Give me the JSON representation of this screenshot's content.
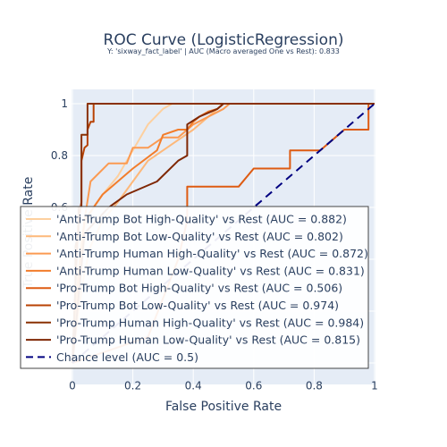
{
  "chart_data": {
    "type": "line",
    "title": "ROC Curve (LogisticRegression)",
    "subtitle": "Y: 'sixway_fact_label' | AUC (Macro averaged One vs Rest): 0.833",
    "xlabel": "False Positive Rate",
    "ylabel": "True Positive Rate",
    "xlim": [
      -0.2,
      1.0
    ],
    "ylim": [
      -0.05,
      1.05
    ],
    "x_ticks": [
      "0",
      "0.2",
      "0.4",
      "0.6",
      "0.8",
      "1"
    ],
    "y_ticks": [
      "0.6",
      "0.8",
      "1"
    ],
    "legend_position": "lower-left",
    "series": [
      {
        "name": "'Anti-Trump Bot High-Quality' vs Rest (AUC = 0.882)",
        "color": "#fdd09f",
        "dash": "solid",
        "x": [
          0,
          0.02,
          0.03,
          0.05,
          0.07,
          0.1,
          0.15,
          0.2,
          0.25,
          0.3,
          0.33
        ],
        "y": [
          0,
          0.3,
          0.5,
          0.55,
          0.6,
          0.65,
          0.72,
          0.82,
          0.92,
          0.98,
          1.0
        ]
      },
      {
        "name": "'Anti-Trump Bot Low-Quality' vs Rest (AUC = 0.802)",
        "color": "#fdb87a",
        "dash": "solid",
        "x": [
          0,
          0.02,
          0.04,
          0.06,
          0.1,
          0.15,
          0.2,
          0.25,
          0.3,
          0.35,
          0.4,
          0.45,
          0.5
        ],
        "y": [
          0,
          0.2,
          0.35,
          0.45,
          0.55,
          0.62,
          0.7,
          0.78,
          0.82,
          0.86,
          0.9,
          0.95,
          1.0
        ]
      },
      {
        "name": "'Anti-Trump Human High-Quality' vs Rest (AUC = 0.872)",
        "color": "#fb9a52",
        "dash": "solid",
        "x": [
          0,
          0.02,
          0.04,
          0.06,
          0.12,
          0.18,
          0.2,
          0.25,
          0.3,
          0.35,
          0.4,
          0.45,
          0.5,
          0.52
        ],
        "y": [
          0,
          0.3,
          0.55,
          0.7,
          0.77,
          0.77,
          0.83,
          0.83,
          0.87,
          0.87,
          0.92,
          0.95,
          0.98,
          1.0
        ]
      },
      {
        "name": "'Anti-Trump Human Low-Quality' vs Rest (AUC = 0.831)",
        "color": "#f27d2c",
        "dash": "solid",
        "x": [
          0,
          0.02,
          0.04,
          0.1,
          0.15,
          0.2,
          0.28,
          0.3,
          0.35,
          0.38,
          0.4,
          0.42,
          0.45,
          0.48,
          0.5
        ],
        "y": [
          0,
          0.35,
          0.55,
          0.65,
          0.7,
          0.75,
          0.82,
          0.88,
          0.9,
          0.9,
          0.93,
          0.95,
          0.97,
          0.98,
          1.0
        ]
      },
      {
        "name": "'Pro-Trump Bot High-Quality' vs Rest (AUC = 0.506)",
        "color": "#de5b12",
        "dash": "solid",
        "x": [
          0,
          0.25,
          0.3,
          0.35,
          0.38,
          0.38,
          0.55,
          0.6,
          0.72,
          0.72,
          0.82,
          0.9,
          0.98,
          0.98,
          1.0
        ],
        "y": [
          0,
          0.1,
          0.25,
          0.4,
          0.55,
          0.68,
          0.68,
          0.75,
          0.75,
          0.82,
          0.82,
          0.9,
          0.9,
          1.0,
          1.0
        ]
      },
      {
        "name": "'Pro-Trump Bot Low-Quality' vs Rest (AUC = 0.974)",
        "color": "#b84203",
        "dash": "solid",
        "x": [
          0,
          0.01,
          0.02,
          0.03,
          0.03,
          0.04,
          0.05,
          0.05,
          0.06,
          0.07,
          0.07,
          0.5,
          0.5,
          1.0
        ],
        "y": [
          0,
          0.3,
          0.55,
          0.62,
          0.78,
          0.83,
          0.84,
          0.9,
          0.93,
          0.93,
          1.0,
          1.0,
          1.0,
          1.0
        ]
      },
      {
        "name": "'Pro-Trump Human High-Quality' vs Rest (AUC = 0.984)",
        "color": "#8a3103",
        "dash": "solid",
        "x": [
          0,
          0.01,
          0.01,
          0.02,
          0.02,
          0.03,
          0.03,
          0.05,
          0.05,
          1.0
        ],
        "y": [
          0,
          0.3,
          0.45,
          0.5,
          0.6,
          0.6,
          0.88,
          0.88,
          1.0,
          1.0
        ]
      },
      {
        "name": "'Pro-Trump Human Low-Quality' vs Rest (AUC = 0.815)",
        "color": "#7f2704",
        "dash": "solid",
        "x": [
          0,
          0.02,
          0.04,
          0.08,
          0.12,
          0.18,
          0.28,
          0.35,
          0.38,
          0.38,
          0.42,
          0.48,
          0.5
        ],
        "y": [
          0,
          0.25,
          0.5,
          0.55,
          0.6,
          0.65,
          0.7,
          0.78,
          0.8,
          0.92,
          0.95,
          0.98,
          1.0
        ]
      },
      {
        "name": "Chance level (AUC = 0.5)",
        "color": "#000080",
        "dash": "dash",
        "x": [
          0,
          1
        ],
        "y": [
          0,
          1
        ]
      }
    ]
  }
}
